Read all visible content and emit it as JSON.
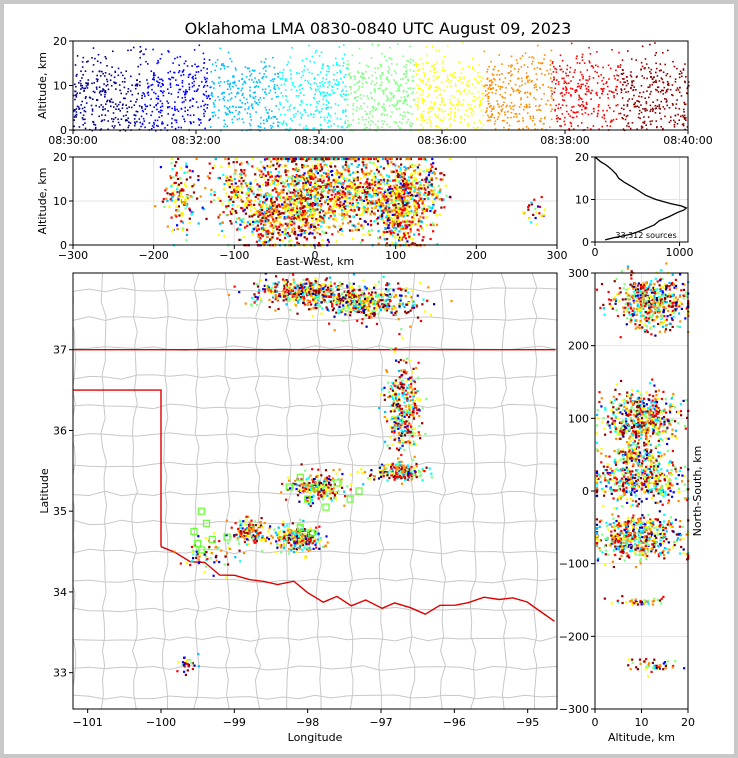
{
  "title": "Oklahoma LMA 0830-0840 UTC August 09, 2023",
  "colormap": [
    "#00008b",
    "#0000ff",
    "#00bfff",
    "#00ffff",
    "#7fff7f",
    "#ffff00",
    "#ff8c00",
    "#ff0000",
    "#8b0000"
  ],
  "county_color": "#c8c8c8",
  "state_color": "#e00000",
  "station_color": "#66ff33",
  "chart_data": [
    {
      "id": "time_height",
      "type": "scatter",
      "xlabel": "",
      "ylabel": "Altitude, km",
      "xticks": [
        "08:30:00",
        "08:32:00",
        "08:34:00",
        "08:36:00",
        "08:38:00",
        "08:40:00"
      ],
      "xlim_minutes": [
        0,
        10
      ],
      "ylim": [
        0,
        20
      ],
      "yticks": [
        0,
        10,
        20
      ],
      "color_by": "time"
    },
    {
      "id": "ew_height",
      "type": "scatter",
      "xlabel": "East-West, km",
      "ylabel": "Altitude, km",
      "xlim": [
        -300,
        300
      ],
      "xticks": [
        -300,
        -200,
        -100,
        0,
        100,
        200,
        300
      ],
      "ylim": [
        0,
        20
      ],
      "yticks": [
        0,
        10,
        20
      ],
      "clusters": [
        {
          "x": -168,
          "y": 11,
          "sx": 10,
          "sy": 4,
          "n": 140
        },
        {
          "x": -90,
          "y": 11,
          "sx": 22,
          "sy": 5,
          "n": 260
        },
        {
          "x": -62,
          "y": 6,
          "sx": 8,
          "sy": 4,
          "n": 160
        },
        {
          "x": -20,
          "y": 11,
          "sx": 22,
          "sy": 6,
          "n": 700
        },
        {
          "x": 40,
          "y": 13,
          "sx": 28,
          "sy": 5,
          "n": 600
        },
        {
          "x": 102,
          "y": 9,
          "sx": 16,
          "sy": 5,
          "n": 600
        },
        {
          "x": 135,
          "y": 13,
          "sx": 14,
          "sy": 4,
          "n": 160
        },
        {
          "x": 270,
          "y": 8,
          "sx": 8,
          "sy": 1.5,
          "n": 25
        }
      ]
    },
    {
      "id": "altitude_histogram",
      "type": "line",
      "xlim": [
        0,
        1100
      ],
      "xticks": [
        0,
        1000
      ],
      "ylim": [
        0,
        20
      ],
      "yticks": [
        0,
        10,
        20
      ],
      "annotation": "33,312 sources",
      "altitude_km": [
        0.5,
        1,
        1.5,
        2,
        2.5,
        3,
        4,
        5,
        6,
        7,
        7.5,
        8,
        8.5,
        9,
        10,
        11,
        12,
        13,
        14,
        15,
        16,
        17,
        18,
        19,
        20
      ],
      "counts": [
        120,
        220,
        350,
        450,
        520,
        580,
        700,
        760,
        880,
        980,
        1050,
        1080,
        1020,
        900,
        720,
        600,
        520,
        440,
        350,
        280,
        250,
        200,
        140,
        60,
        0
      ]
    },
    {
      "id": "plan_view",
      "type": "scatter",
      "xlabel": "Longitude",
      "ylabel": "Latitude",
      "xlim": [
        -101.2,
        -94.6
      ],
      "ylim": [
        32.55,
        37.95
      ],
      "xticks": [
        -101,
        -100,
        -99,
        -98,
        -97,
        -96,
        -95
      ],
      "yticks": [
        33,
        34,
        35,
        36,
        37
      ],
      "clusters": [
        {
          "lon": -98.0,
          "lat": 37.72,
          "slon": 0.35,
          "slat": 0.08,
          "n": 450
        },
        {
          "lon": -97.2,
          "lat": 37.6,
          "slon": 0.35,
          "slat": 0.1,
          "n": 420
        },
        {
          "lon": -96.7,
          "lat": 36.3,
          "slon": 0.12,
          "slat": 0.3,
          "n": 350
        },
        {
          "lon": -96.75,
          "lat": 35.5,
          "slon": 0.18,
          "slat": 0.05,
          "n": 200
        },
        {
          "lon": -97.9,
          "lat": 35.32,
          "slon": 0.2,
          "slat": 0.08,
          "n": 220
        },
        {
          "lon": -98.15,
          "lat": 34.67,
          "slon": 0.18,
          "slat": 0.08,
          "n": 260
        },
        {
          "lon": -98.8,
          "lat": 34.75,
          "slon": 0.12,
          "slat": 0.08,
          "n": 140
        },
        {
          "lon": -99.4,
          "lat": 34.5,
          "slon": 0.2,
          "slat": 0.12,
          "n": 60
        },
        {
          "lon": -99.65,
          "lat": 33.13,
          "slon": 0.05,
          "slat": 0.04,
          "n": 30
        }
      ],
      "stations": [
        [
          -99.45,
          35.0
        ],
        [
          -99.38,
          34.85
        ],
        [
          -99.55,
          34.75
        ],
        [
          -99.3,
          34.65
        ],
        [
          -99.1,
          34.68
        ],
        [
          -99.5,
          34.6
        ],
        [
          -99.45,
          34.52
        ],
        [
          -98.1,
          34.8
        ],
        [
          -97.95,
          34.73
        ],
        [
          -98.25,
          35.3
        ],
        [
          -98.0,
          35.15
        ],
        [
          -97.75,
          35.05
        ],
        [
          -97.3,
          35.25
        ],
        [
          -97.42,
          35.15
        ],
        [
          -98.1,
          35.42
        ],
        [
          -97.9,
          35.3
        ],
        [
          -97.6,
          35.35
        ]
      ]
    },
    {
      "id": "ns_altitude",
      "type": "scatter",
      "xlabel": "Altitude, km",
      "ylabel": "North-South, km",
      "xlim": [
        0,
        20
      ],
      "xticks": [
        0,
        10,
        20
      ],
      "ylim": [
        -300,
        300
      ],
      "yticks": [
        -300,
        -200,
        -100,
        0,
        100,
        200,
        300
      ],
      "clusters": [
        {
          "ns": 262,
          "alt": 12,
          "sns": 18,
          "salt": 4,
          "n": 520
        },
        {
          "ns": 110,
          "alt": 10,
          "sns": 15,
          "salt": 4,
          "n": 340
        },
        {
          "ns": 85,
          "alt": 9,
          "sns": 10,
          "salt": 4,
          "n": 180
        },
        {
          "ns": 52,
          "alt": 9,
          "sns": 8,
          "salt": 3,
          "n": 120
        },
        {
          "ns": 15,
          "alt": 9,
          "sns": 15,
          "salt": 5,
          "n": 460
        },
        {
          "ns": -45,
          "alt": 9,
          "sns": 6,
          "salt": 4,
          "n": 130
        },
        {
          "ns": -68,
          "alt": 9,
          "sns": 12,
          "salt": 5,
          "n": 400
        },
        {
          "ns": -150,
          "alt": 9,
          "sns": 3,
          "salt": 3,
          "n": 40
        },
        {
          "ns": -238,
          "alt": 11,
          "sns": 5,
          "salt": 3,
          "n": 45
        }
      ]
    }
  ]
}
